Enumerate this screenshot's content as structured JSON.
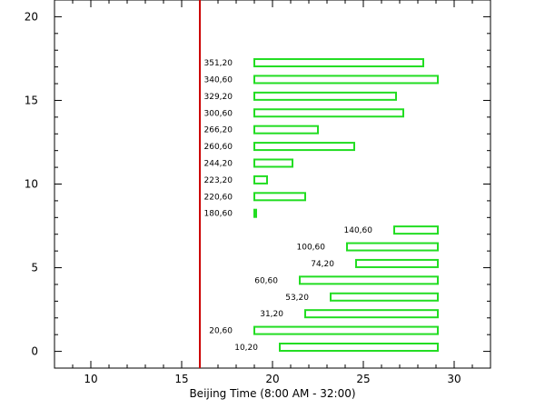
{
  "chart_data": {
    "type": "bar",
    "orientation": "horizontal",
    "title": "",
    "xlabel": "Beijing Time (8:00 AM - 32:00)",
    "ylabel": "",
    "xlim": [
      8,
      32
    ],
    "ylim": [
      -1,
      21
    ],
    "xticks": [
      10,
      15,
      20,
      25,
      30
    ],
    "yticks": [
      0,
      5,
      10,
      15,
      20
    ],
    "grid": false,
    "vertical_line": {
      "x": 16,
      "color": "#cc0000"
    },
    "bar_color": "#22dd22",
    "bars": [
      {
        "label": "10,20",
        "y": 0.25,
        "start": 20.4,
        "end": 29.1
      },
      {
        "label": "20,60",
        "y": 1.25,
        "start": 19.0,
        "end": 29.1
      },
      {
        "label": "31,20",
        "y": 2.25,
        "start": 21.8,
        "end": 29.1
      },
      {
        "label": "53,20",
        "y": 3.25,
        "start": 23.2,
        "end": 29.1
      },
      {
        "label": "60,60",
        "y": 4.25,
        "start": 21.5,
        "end": 29.1
      },
      {
        "label": "74,20",
        "y": 5.25,
        "start": 24.6,
        "end": 29.1
      },
      {
        "label": "100,60",
        "y": 6.25,
        "start": 24.1,
        "end": 29.1
      },
      {
        "label": "140,60",
        "y": 7.25,
        "start": 26.7,
        "end": 29.1
      },
      {
        "label": "180,60",
        "y": 8.25,
        "start": 19.0,
        "end": 19.1
      },
      {
        "label": "220,60",
        "y": 9.25,
        "start": 19.0,
        "end": 21.8
      },
      {
        "label": "223,20",
        "y": 10.25,
        "start": 19.0,
        "end": 19.7
      },
      {
        "label": "244,20",
        "y": 11.25,
        "start": 19.0,
        "end": 21.1
      },
      {
        "label": "260,60",
        "y": 12.25,
        "start": 19.0,
        "end": 24.5
      },
      {
        "label": "266,20",
        "y": 13.25,
        "start": 19.0,
        "end": 22.5
      },
      {
        "label": "300,60",
        "y": 14.25,
        "start": 19.0,
        "end": 27.2
      },
      {
        "label": "329,20",
        "y": 15.25,
        "start": 19.0,
        "end": 26.8
      },
      {
        "label": "340,60",
        "y": 16.25,
        "start": 19.0,
        "end": 29.1
      },
      {
        "label": "351,20",
        "y": 17.25,
        "start": 19.0,
        "end": 28.3
      }
    ]
  }
}
